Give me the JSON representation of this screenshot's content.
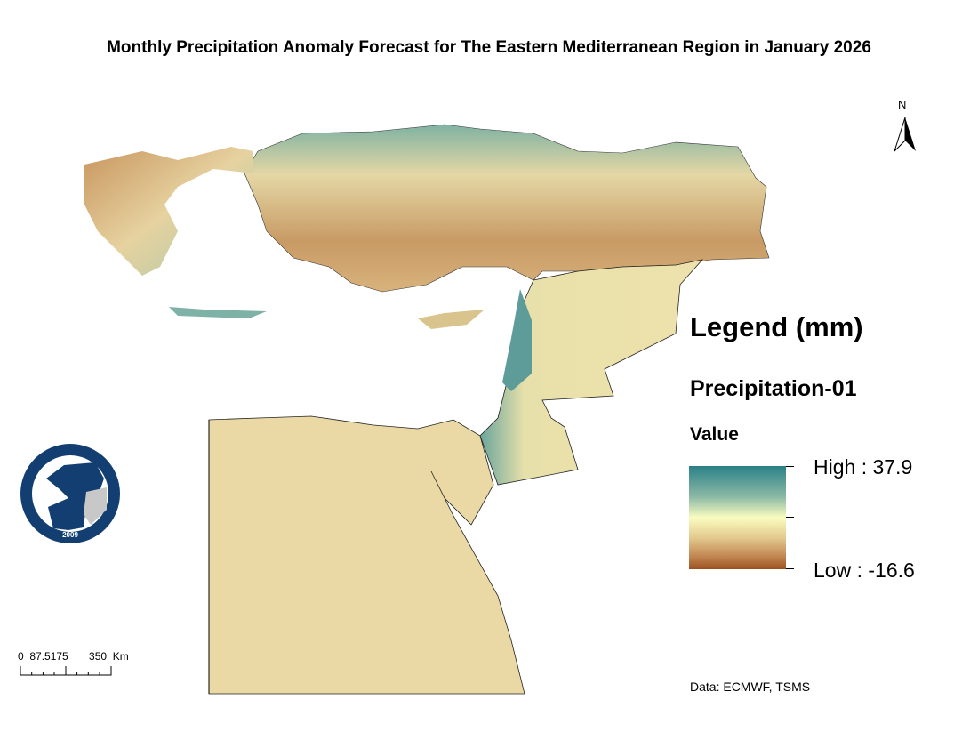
{
  "title": "Monthly Precipitation Anomaly Forecast for The Eastern Mediterranean Region in January 2026",
  "north_arrow": {
    "label": "N"
  },
  "legend": {
    "title": "Legend (mm)",
    "layer": "Precipitation-01",
    "field": "Value",
    "high_label": "High : 37.9",
    "low_label": "Low : -16.6",
    "high_value": 37.9,
    "low_value": -16.6,
    "colors": {
      "high": "#2b8088",
      "mid": "#fafcc0",
      "low": "#9c5020"
    }
  },
  "scale_bar": {
    "labels": "0  87.5175       350  Km"
  },
  "source": "Data: ECMWF, TSMS",
  "logo": {
    "text": "EASTERN MEDITERRANEAN CLIMATE CENTRE",
    "year": "2009"
  }
}
